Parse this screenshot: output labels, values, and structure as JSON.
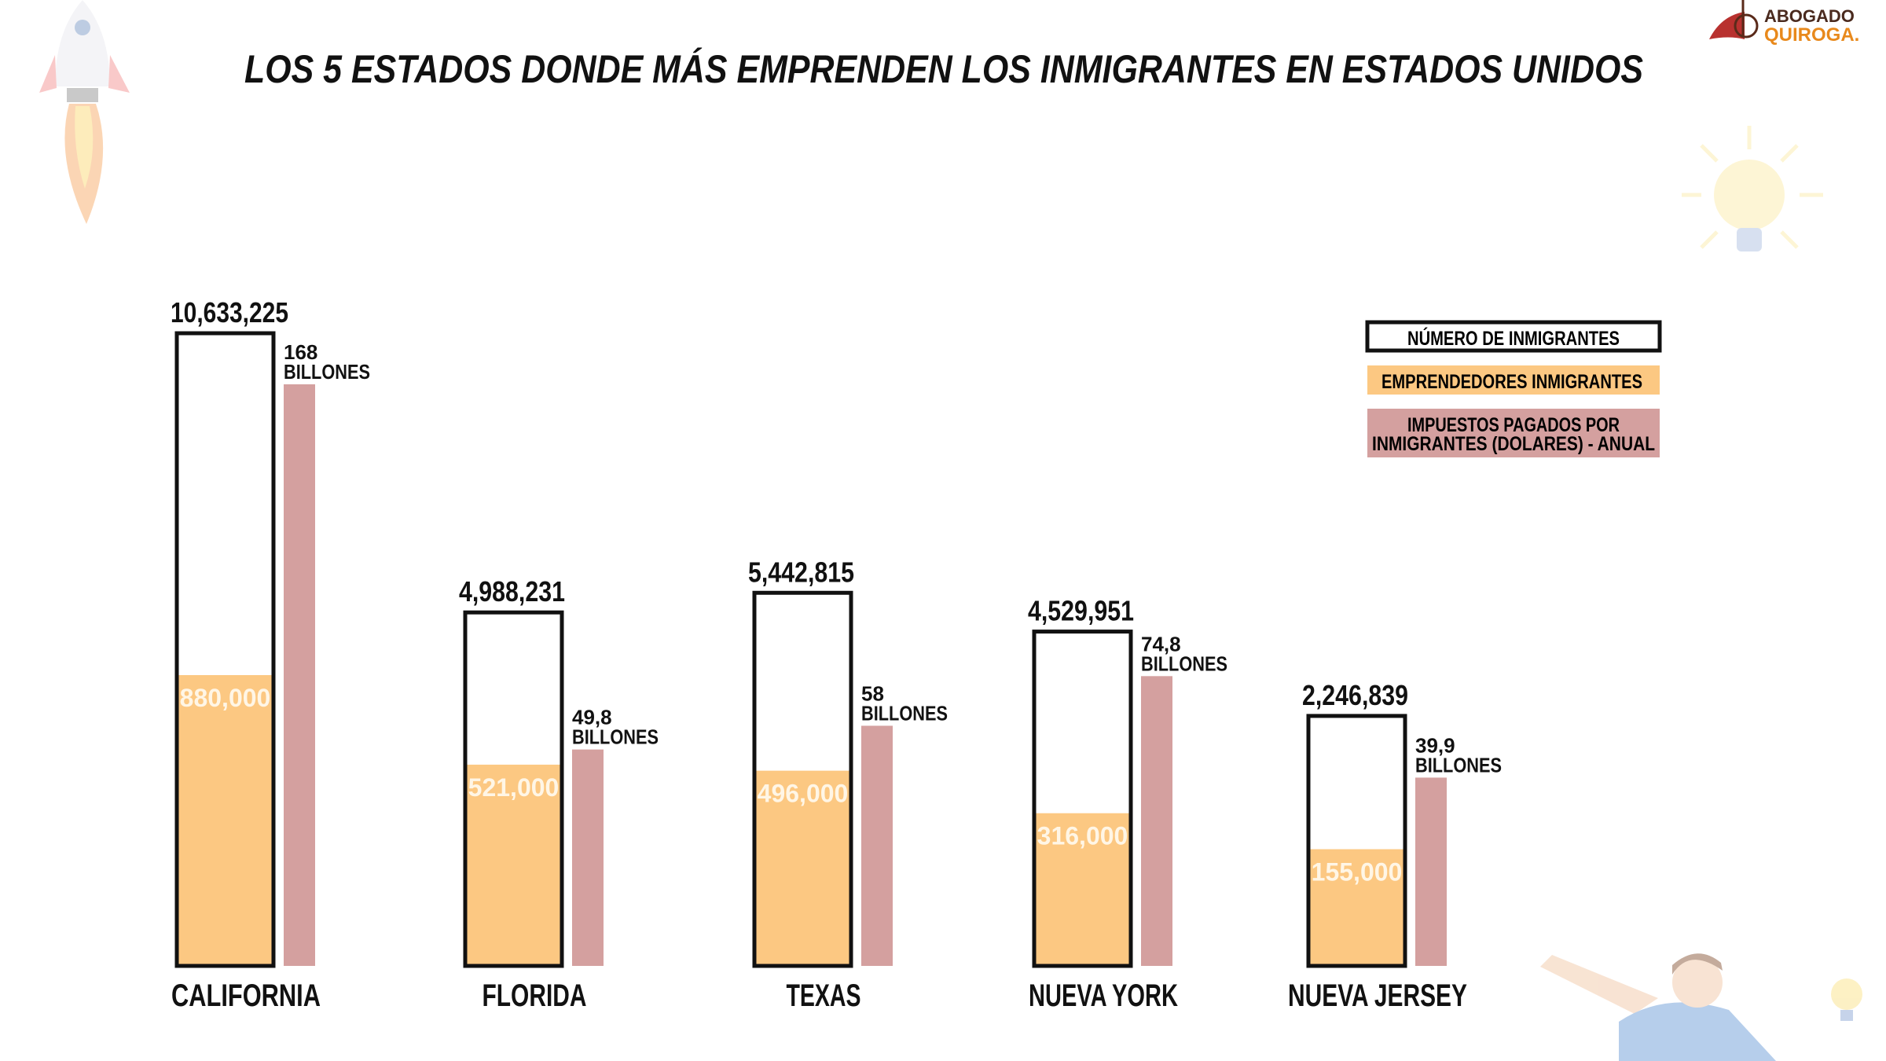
{
  "title": "LOS 5 ESTADOS DONDE MÁS EMPRENDEN LOS INMIGRANTES EN ESTADOS UNIDOS",
  "logo": {
    "line1": "ABOGADO",
    "line2": "QUIROGA."
  },
  "colors": {
    "inmigrantes": "#ffffff",
    "emprendedores": "#fcc882",
    "impuestos": "#d4a09f",
    "outline": "#111111",
    "logo_red": "#b8312f",
    "logo_orange": "#e8891c"
  },
  "decorations": [
    "rocket-icon",
    "lightbulb-icon",
    "pointing-man-illustration"
  ],
  "chart_data": {
    "type": "bar",
    "title": "LOS 5 ESTADOS DONDE MÁS EMPRENDEN LOS INMIGRANTES EN ESTADOS UNIDOS",
    "categories": [
      "CALIFORNIA",
      "FLORIDA",
      "TEXAS",
      "NUEVA YORK",
      "NUEVA JERSEY"
    ],
    "legend_position": "top-right",
    "grid": false,
    "series": [
      {
        "name": "NÚMERO DE INMIGRANTES",
        "values": [
          10633225,
          4988231,
          5442815,
          4529951,
          2246839
        ],
        "labels": [
          "10,633,225",
          "4,988,231",
          "5,442,815",
          "4,529,951",
          "2,246,839"
        ]
      },
      {
        "name": "EMPRENDEDORES INMIGRANTES",
        "values": [
          880000,
          521000,
          496000,
          316000,
          155000
        ],
        "labels": [
          "880,000",
          "521,000",
          "496,000",
          "316,000",
          "155,000"
        ]
      },
      {
        "name": "IMPUESTOS PAGADOS POR INMIGRANTES (DOLARES) - ANUAL",
        "values": [
          168,
          49.8,
          58,
          74.8,
          39.9
        ],
        "labels": [
          "168",
          "49,8",
          "58",
          "74,8",
          "39,9"
        ],
        "unit": "BILLONES"
      }
    ],
    "legend": {
      "item1": "NÚMERO DE INMIGRANTES",
      "item2": "EMPRENDEDORES INMIGRANTES",
      "item3_line1": "IMPUESTOS PAGADOS POR",
      "item3_line2": "INMIGRANTES (DOLARES) - ANUAL"
    }
  }
}
